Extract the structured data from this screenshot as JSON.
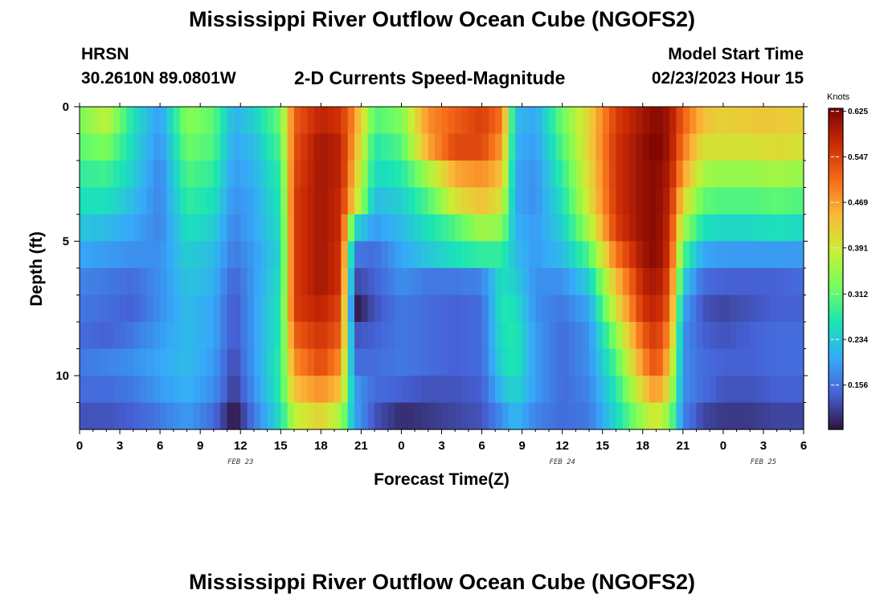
{
  "header": {
    "title": "Mississippi River Outflow Ocean Cube (NGOFS2)",
    "station": "HRSN",
    "coords": "30.2610N  89.0801W",
    "subtitle": "2-D Currents Speed-Magnitude",
    "start_label": "Model Start Time",
    "start_value": "02/23/2023 Hour 15"
  },
  "footer": {
    "title": "Mississippi River Outflow Ocean Cube (NGOFS2)"
  },
  "chart_data": {
    "type": "heatmap",
    "xlabel": "Forecast Time(Z)",
    "ylabel": "Depth (ft)",
    "units": "Knots",
    "xlim": [
      0,
      54
    ],
    "ylim": [
      12,
      0
    ],
    "x_tick_values": [
      0,
      3,
      6,
      9,
      12,
      15,
      18,
      21,
      24,
      27,
      30,
      33,
      36,
      39,
      42,
      45,
      48,
      51,
      54
    ],
    "x_tick_labels": [
      "0",
      "3",
      "6",
      "9",
      "12",
      "15",
      "18",
      "21",
      "0",
      "3",
      "6",
      "9",
      "12",
      "15",
      "18",
      "21",
      "0",
      "3",
      "6"
    ],
    "date_labels": [
      {
        "text": "FEB 23",
        "at_hour": 12
      },
      {
        "text": "FEB 24",
        "at_hour": 36
      },
      {
        "text": "FEB 25",
        "at_hour": 51
      }
    ],
    "y_tick_values": [
      0,
      5,
      10
    ],
    "y_tick_labels": [
      "0",
      "5",
      "10"
    ],
    "colorbar": {
      "min": 0.08,
      "max": 0.63,
      "ticks": [
        "0.625",
        "0.547",
        "0.469",
        "0.391",
        "0.312",
        "0.234",
        "0.156"
      ],
      "colors": [
        "#30123b",
        "#4662d7",
        "#36aaf9",
        "#1ae4b6",
        "#72fe5e",
        "#c8ef34",
        "#faba39",
        "#f66b19",
        "#ca2a04",
        "#7a0403"
      ]
    },
    "depths_ft": [
      0.5,
      1.5,
      2.5,
      3.5,
      4.5,
      5.5,
      6.5,
      7.5,
      8.5,
      9.5,
      10.5,
      11.5
    ],
    "time_keys_hours": [
      0,
      2,
      4,
      6,
      8,
      10,
      11.5,
      13,
      15,
      16,
      18,
      19.5,
      20.5,
      22,
      24,
      26,
      28,
      30,
      31.5,
      32.5,
      34,
      36,
      38,
      40,
      42,
      43,
      44,
      45,
      46.5,
      48,
      50,
      52,
      54
    ],
    "speed_knots": [
      [
        0.33,
        0.38,
        0.26,
        0.19,
        0.34,
        0.31,
        0.21,
        0.24,
        0.32,
        0.52,
        0.58,
        0.56,
        0.48,
        0.3,
        0.33,
        0.48,
        0.52,
        0.55,
        0.5,
        0.22,
        0.2,
        0.32,
        0.42,
        0.55,
        0.6,
        0.62,
        0.6,
        0.52,
        0.44,
        0.42,
        0.43,
        0.43,
        0.42
      ],
      [
        0.31,
        0.33,
        0.25,
        0.18,
        0.32,
        0.3,
        0.2,
        0.22,
        0.3,
        0.53,
        0.6,
        0.58,
        0.46,
        0.27,
        0.3,
        0.46,
        0.54,
        0.54,
        0.47,
        0.21,
        0.19,
        0.3,
        0.42,
        0.56,
        0.61,
        0.63,
        0.6,
        0.5,
        0.4,
        0.4,
        0.4,
        0.41,
        0.4
      ],
      [
        0.28,
        0.29,
        0.24,
        0.17,
        0.3,
        0.28,
        0.19,
        0.21,
        0.28,
        0.54,
        0.6,
        0.58,
        0.44,
        0.25,
        0.27,
        0.36,
        0.46,
        0.48,
        0.44,
        0.2,
        0.18,
        0.28,
        0.41,
        0.56,
        0.61,
        0.62,
        0.59,
        0.47,
        0.36,
        0.35,
        0.35,
        0.36,
        0.35
      ],
      [
        0.26,
        0.26,
        0.22,
        0.17,
        0.28,
        0.26,
        0.18,
        0.2,
        0.27,
        0.55,
        0.6,
        0.57,
        0.42,
        0.22,
        0.24,
        0.3,
        0.4,
        0.44,
        0.4,
        0.2,
        0.18,
        0.26,
        0.4,
        0.56,
        0.61,
        0.62,
        0.58,
        0.42,
        0.31,
        0.3,
        0.3,
        0.31,
        0.3
      ],
      [
        0.23,
        0.22,
        0.2,
        0.17,
        0.26,
        0.24,
        0.17,
        0.2,
        0.26,
        0.55,
        0.6,
        0.57,
        0.25,
        0.19,
        0.22,
        0.26,
        0.3,
        0.36,
        0.34,
        0.21,
        0.19,
        0.24,
        0.36,
        0.55,
        0.61,
        0.62,
        0.57,
        0.36,
        0.26,
        0.25,
        0.25,
        0.26,
        0.25
      ],
      [
        0.2,
        0.19,
        0.18,
        0.18,
        0.24,
        0.22,
        0.16,
        0.19,
        0.25,
        0.55,
        0.6,
        0.56,
        0.16,
        0.15,
        0.2,
        0.23,
        0.26,
        0.28,
        0.28,
        0.22,
        0.19,
        0.22,
        0.3,
        0.5,
        0.6,
        0.62,
        0.56,
        0.3,
        0.2,
        0.19,
        0.19,
        0.19,
        0.19
      ],
      [
        0.17,
        0.16,
        0.15,
        0.18,
        0.23,
        0.21,
        0.14,
        0.19,
        0.26,
        0.55,
        0.6,
        0.56,
        0.12,
        0.14,
        0.18,
        0.16,
        0.16,
        0.17,
        0.26,
        0.24,
        0.18,
        0.18,
        0.24,
        0.44,
        0.58,
        0.6,
        0.54,
        0.24,
        0.15,
        0.14,
        0.14,
        0.14,
        0.15
      ],
      [
        0.16,
        0.15,
        0.14,
        0.18,
        0.22,
        0.2,
        0.13,
        0.19,
        0.27,
        0.55,
        0.58,
        0.54,
        0.08,
        0.13,
        0.16,
        0.15,
        0.14,
        0.15,
        0.27,
        0.26,
        0.18,
        0.16,
        0.2,
        0.4,
        0.56,
        0.58,
        0.52,
        0.2,
        0.13,
        0.12,
        0.13,
        0.14,
        0.14
      ],
      [
        0.15,
        0.14,
        0.16,
        0.19,
        0.22,
        0.2,
        0.13,
        0.19,
        0.27,
        0.52,
        0.56,
        0.52,
        0.13,
        0.14,
        0.16,
        0.15,
        0.14,
        0.15,
        0.26,
        0.27,
        0.19,
        0.15,
        0.18,
        0.34,
        0.52,
        0.56,
        0.48,
        0.18,
        0.14,
        0.13,
        0.14,
        0.15,
        0.15
      ],
      [
        0.16,
        0.17,
        0.18,
        0.2,
        0.22,
        0.19,
        0.12,
        0.19,
        0.28,
        0.48,
        0.54,
        0.48,
        0.15,
        0.15,
        0.16,
        0.15,
        0.14,
        0.15,
        0.25,
        0.27,
        0.19,
        0.15,
        0.18,
        0.3,
        0.48,
        0.54,
        0.44,
        0.18,
        0.15,
        0.14,
        0.14,
        0.15,
        0.15
      ],
      [
        0.15,
        0.15,
        0.16,
        0.19,
        0.21,
        0.18,
        0.11,
        0.18,
        0.28,
        0.44,
        0.48,
        0.44,
        0.19,
        0.15,
        0.14,
        0.13,
        0.13,
        0.14,
        0.22,
        0.25,
        0.19,
        0.15,
        0.17,
        0.27,
        0.42,
        0.48,
        0.4,
        0.18,
        0.15,
        0.13,
        0.13,
        0.14,
        0.14
      ],
      [
        0.13,
        0.13,
        0.14,
        0.16,
        0.19,
        0.15,
        0.08,
        0.16,
        0.26,
        0.38,
        0.42,
        0.36,
        0.2,
        0.13,
        0.1,
        0.11,
        0.12,
        0.13,
        0.18,
        0.22,
        0.17,
        0.15,
        0.16,
        0.25,
        0.36,
        0.4,
        0.34,
        0.17,
        0.12,
        0.11,
        0.11,
        0.12,
        0.12
      ]
    ]
  }
}
